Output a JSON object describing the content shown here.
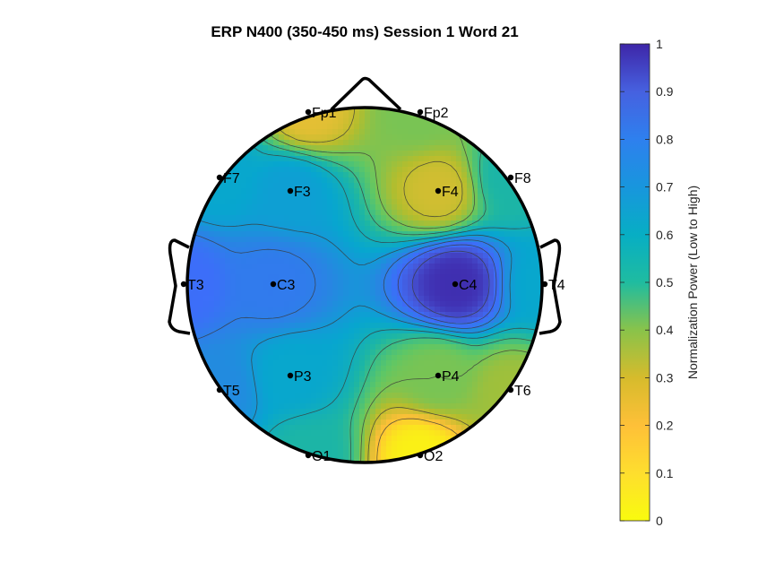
{
  "chart_data": {
    "type": "heatmap",
    "title": "ERP N400 (350-450 ms) Session 1 Word 21",
    "colorbar": {
      "label": "Normalization Power (Low to High)",
      "range": [
        0,
        1
      ],
      "ticks": [
        "0",
        "0.1",
        "0.2",
        "0.3",
        "0.4",
        "0.5",
        "0.6",
        "0.7",
        "0.8",
        "0.9",
        "1"
      ],
      "colormap": [
        "#f9fb0e",
        "#fec038",
        "#b4bd2d",
        "#5fc765",
        "#1db6a4",
        "#07a6cf",
        "#2786e2",
        "#3c6ef9",
        "#4656d6",
        "#3e26a8"
      ]
    },
    "electrodes": [
      {
        "label": "Fp1",
        "value": 0.15
      },
      {
        "label": "Fp2",
        "value": 0.3
      },
      {
        "label": "F7",
        "value": 0.55
      },
      {
        "label": "F3",
        "value": 0.58
      },
      {
        "label": "F4",
        "value": 0.18
      },
      {
        "label": "F8",
        "value": 0.45
      },
      {
        "label": "T3",
        "value": 0.78
      },
      {
        "label": "C3",
        "value": 0.72
      },
      {
        "label": "C4",
        "value": 0.98
      },
      {
        "label": "T4",
        "value": 0.55
      },
      {
        "label": "T5",
        "value": 0.65
      },
      {
        "label": "P3",
        "value": 0.55
      },
      {
        "label": "P4",
        "value": 0.3
      },
      {
        "label": "T6",
        "value": 0.25
      },
      {
        "label": "O1",
        "value": 0.45
      },
      {
        "label": "O2",
        "value": 0.02
      }
    ]
  }
}
